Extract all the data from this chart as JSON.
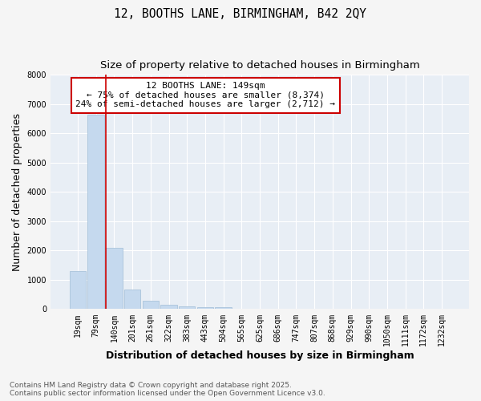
{
  "title_line1": "12, BOOTHS LANE, BIRMINGHAM, B42 2QY",
  "title_line2": "Size of property relative to detached houses in Birmingham",
  "xlabel": "Distribution of detached houses by size in Birmingham",
  "ylabel": "Number of detached properties",
  "categories": [
    "19sqm",
    "79sqm",
    "140sqm",
    "201sqm",
    "261sqm",
    "322sqm",
    "383sqm",
    "443sqm",
    "504sqm",
    "565sqm",
    "625sqm",
    "686sqm",
    "747sqm",
    "807sqm",
    "868sqm",
    "929sqm",
    "990sqm",
    "1050sqm",
    "1111sqm",
    "1172sqm",
    "1232sqm"
  ],
  "values": [
    1310,
    6640,
    2100,
    680,
    300,
    140,
    90,
    60,
    60,
    0,
    0,
    0,
    0,
    0,
    0,
    0,
    0,
    0,
    0,
    0,
    0
  ],
  "bar_color": "#c5d9ee",
  "bar_edgecolor": "#a0bdd6",
  "redline_index": 2,
  "annotation_text": "12 BOOTHS LANE: 149sqm\n← 75% of detached houses are smaller (8,374)\n24% of semi-detached houses are larger (2,712) →",
  "annotation_box_color": "#ffffff",
  "annotation_edge_color": "#cc0000",
  "ylim": [
    0,
    8000
  ],
  "yticks": [
    0,
    1000,
    2000,
    3000,
    4000,
    5000,
    6000,
    7000,
    8000
  ],
  "redline_color": "#cc0000",
  "plot_bg_color": "#e8eef5",
  "fig_bg_color": "#f5f5f5",
  "footnote": "Contains HM Land Registry data © Crown copyright and database right 2025.\nContains public sector information licensed under the Open Government Licence v3.0.",
  "title_fontsize": 10.5,
  "subtitle_fontsize": 9.5,
  "axis_label_fontsize": 9,
  "tick_fontsize": 7,
  "annotation_fontsize": 8,
  "footnote_fontsize": 6.5
}
